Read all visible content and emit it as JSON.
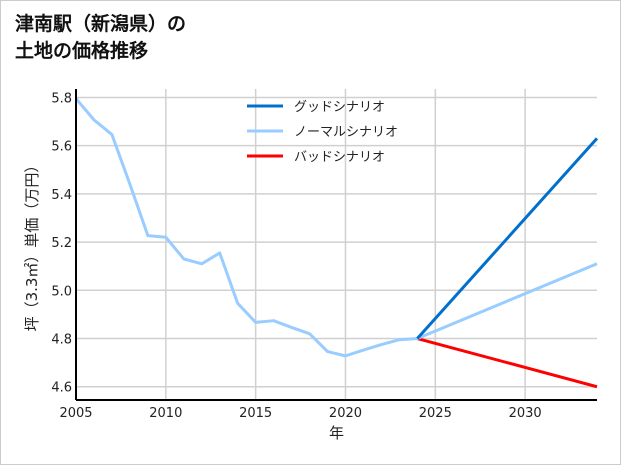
{
  "title_line1": "津南駅（新潟県）の",
  "title_line2": "土地の価格推移",
  "chart_data": {
    "type": "line",
    "xlabel": "年",
    "ylabel": "坪（3.3㎡）単価（万円）",
    "xlim": [
      2005,
      2034
    ],
    "ylim": [
      4.545,
      5.835
    ],
    "xticks": [
      2005,
      2010,
      2015,
      2020,
      2025,
      2030
    ],
    "yticks": [
      4.6,
      4.8,
      5.0,
      5.2,
      5.4,
      5.6,
      5.8
    ],
    "grid": true,
    "legend_position": "top-center",
    "series": [
      {
        "name": "グッドシナリオ",
        "color": "#0070CC",
        "x": [
          2024,
          2034
        ],
        "y": [
          4.8,
          5.63
        ]
      },
      {
        "name": "ノーマルシナリオ",
        "color": "#99CCFF",
        "x": [
          2005,
          2006,
          2007,
          2008,
          2009,
          2010,
          2011,
          2012,
          2013,
          2014,
          2015,
          2016,
          2017,
          2018,
          2019,
          2020,
          2021,
          2022,
          2023,
          2024,
          2034
        ],
        "y": [
          5.795,
          5.707,
          5.646,
          5.44,
          5.227,
          5.22,
          5.13,
          5.11,
          5.155,
          4.946,
          4.867,
          4.874,
          4.846,
          4.82,
          4.746,
          4.728,
          4.752,
          4.775,
          4.795,
          4.8,
          5.11
        ]
      },
      {
        "name": "バッドシナリオ",
        "color": "#FF0000",
        "x": [
          2024,
          2034
        ],
        "y": [
          4.8,
          4.6
        ]
      }
    ]
  }
}
